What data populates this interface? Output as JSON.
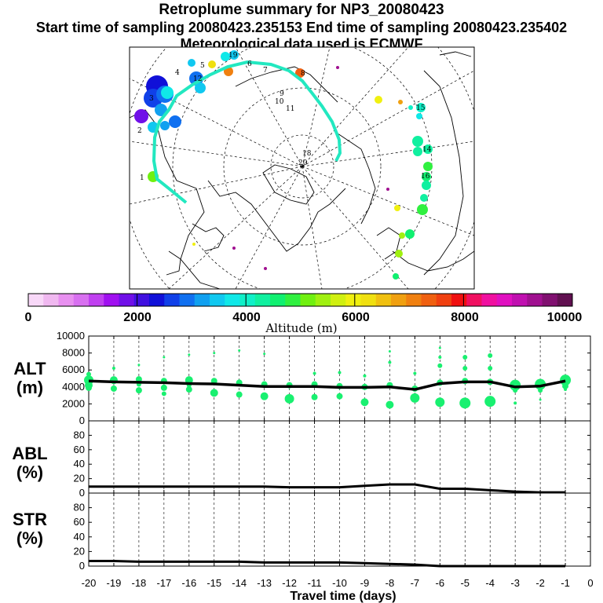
{
  "header": {
    "title": "Retroplume summary for NP3_20080423",
    "sampling_line": "Start time of sampling 20080423.235153     End time of sampling 20080423.235402",
    "met_line": "Meteorological data used is ECMWF"
  },
  "colors": {
    "trajectory": "#22e8c0",
    "point": "#19f070",
    "line": "#000000"
  },
  "colorbar": {
    "colors": [
      "#f8d8f8",
      "#f0b8f0",
      "#e890f0",
      "#d870f0",
      "#c040f0",
      "#a010f0",
      "#7010e8",
      "#4010e0",
      "#1010d8",
      "#1040e8",
      "#1070f0",
      "#10a0f0",
      "#10c8f0",
      "#10e8e8",
      "#10f0c8",
      "#10f0a0",
      "#10f070",
      "#30f040",
      "#70f010",
      "#a0f010",
      "#d0f010",
      "#f0f010",
      "#f0e010",
      "#f0c010",
      "#f0a010",
      "#f08010",
      "#f06010",
      "#f04010",
      "#f01010",
      "#f01060",
      "#f010a0",
      "#e010c0",
      "#c010b0",
      "#a01090",
      "#801070",
      "#601050"
    ],
    "ticks": [
      "0",
      "2000",
      "4000",
      "6000",
      "8000",
      "10000"
    ],
    "label": "Altitude (m)"
  },
  "map_labels": [
    {
      "text": "1",
      "color": "#000000"
    },
    {
      "text": "2",
      "color": "#000000"
    },
    {
      "text": "3",
      "color": "#000000"
    },
    {
      "text": "4",
      "color": "#000000"
    },
    {
      "text": "5",
      "color": "#000000"
    },
    {
      "text": "6",
      "color": "#000000"
    },
    {
      "text": "7",
      "color": "#000000"
    },
    {
      "text": "8",
      "color": "#000000"
    },
    {
      "text": "9",
      "color": "#000000"
    },
    {
      "text": "10",
      "color": "#000000"
    },
    {
      "text": "11",
      "color": "#000000"
    },
    {
      "text": "12",
      "color": "#000000"
    },
    {
      "text": "14",
      "color": "#000000"
    },
    {
      "text": "15",
      "color": "#000000"
    },
    {
      "text": "16",
      "color": "#000000"
    },
    {
      "text": "18",
      "color": "#000000"
    },
    {
      "text": "19",
      "color": "#000000"
    },
    {
      "text": "20",
      "color": "#000000"
    }
  ],
  "chart_data": [
    {
      "type": "scatter+line",
      "name": "ALT",
      "ylabel_line1": "ALT",
      "ylabel_line2": "(m)",
      "ylim": [
        0,
        10000
      ],
      "yticks": [
        "0",
        "2000",
        "4000",
        "6000",
        "8000",
        "10000"
      ],
      "xlim": [
        -20,
        0
      ],
      "line_x": [
        -20,
        -19,
        -18,
        -17,
        -16,
        -15,
        -14,
        -13,
        -12,
        -11,
        -10,
        -9,
        -8,
        -7,
        -6,
        -5,
        -4,
        -3,
        -2,
        -1
      ],
      "line_y": [
        4700,
        4600,
        4550,
        4500,
        4400,
        4350,
        4200,
        4050,
        4050,
        4050,
        3950,
        3950,
        4000,
        3700,
        4400,
        4600,
        4600,
        4000,
        4100,
        4700
      ],
      "points": [
        {
          "x": -20,
          "y": 4800,
          "s": 6
        },
        {
          "x": -20,
          "y": 4200,
          "s": 5
        },
        {
          "x": -20,
          "y": 3900,
          "s": 4
        },
        {
          "x": -20,
          "y": 5500,
          "s": 3
        },
        {
          "x": -19,
          "y": 4800,
          "s": 5
        },
        {
          "x": -19,
          "y": 3800,
          "s": 4
        },
        {
          "x": -19,
          "y": 6200,
          "s": 2
        },
        {
          "x": -18,
          "y": 4900,
          "s": 4
        },
        {
          "x": -18,
          "y": 3600,
          "s": 4
        },
        {
          "x": -18,
          "y": 4300,
          "s": 3
        },
        {
          "x": -18,
          "y": 6600,
          "s": 1.5
        },
        {
          "x": -17,
          "y": 4700,
          "s": 4
        },
        {
          "x": -17,
          "y": 3900,
          "s": 4
        },
        {
          "x": -17,
          "y": 3200,
          "s": 3
        },
        {
          "x": -17,
          "y": 7500,
          "s": 1.5
        },
        {
          "x": -16,
          "y": 4800,
          "s": 5
        },
        {
          "x": -16,
          "y": 3700,
          "s": 4
        },
        {
          "x": -16,
          "y": 4200,
          "s": 3
        },
        {
          "x": -16,
          "y": 7800,
          "s": 1.5
        },
        {
          "x": -15,
          "y": 4700,
          "s": 4
        },
        {
          "x": -15,
          "y": 3300,
          "s": 5
        },
        {
          "x": -15,
          "y": 8000,
          "s": 1.5
        },
        {
          "x": -14,
          "y": 4500,
          "s": 4
        },
        {
          "x": -14,
          "y": 3100,
          "s": 4
        },
        {
          "x": -14,
          "y": 8300,
          "s": 1.5
        },
        {
          "x": -13,
          "y": 4300,
          "s": 4
        },
        {
          "x": -13,
          "y": 2900,
          "s": 5
        },
        {
          "x": -13,
          "y": 7900,
          "s": 1.5
        },
        {
          "x": -12,
          "y": 4200,
          "s": 4
        },
        {
          "x": -12,
          "y": 2600,
          "s": 6
        },
        {
          "x": -11,
          "y": 4300,
          "s": 4
        },
        {
          "x": -11,
          "y": 2800,
          "s": 4
        },
        {
          "x": -11,
          "y": 5600,
          "s": 2
        },
        {
          "x": -10,
          "y": 4100,
          "s": 4
        },
        {
          "x": -10,
          "y": 2900,
          "s": 4
        },
        {
          "x": -10,
          "y": 5700,
          "s": 2
        },
        {
          "x": -9,
          "y": 4000,
          "s": 4
        },
        {
          "x": -9,
          "y": 2200,
          "s": 5
        },
        {
          "x": -9,
          "y": 5300,
          "s": 2
        },
        {
          "x": -8,
          "y": 4200,
          "s": 4
        },
        {
          "x": -8,
          "y": 1900,
          "s": 5
        },
        {
          "x": -8,
          "y": 6900,
          "s": 2
        },
        {
          "x": -8,
          "y": 8200,
          "s": 1.5
        },
        {
          "x": -7,
          "y": 3800,
          "s": 4
        },
        {
          "x": -7,
          "y": 2700,
          "s": 6
        },
        {
          "x": -7,
          "y": 5600,
          "s": 2
        },
        {
          "x": -6,
          "y": 4500,
          "s": 4
        },
        {
          "x": -6,
          "y": 2200,
          "s": 6
        },
        {
          "x": -6,
          "y": 6500,
          "s": 3
        },
        {
          "x": -6,
          "y": 7500,
          "s": 2
        },
        {
          "x": -6,
          "y": 8600,
          "s": 1.5
        },
        {
          "x": -5,
          "y": 4700,
          "s": 4
        },
        {
          "x": -5,
          "y": 2100,
          "s": 7
        },
        {
          "x": -5,
          "y": 6200,
          "s": 3
        },
        {
          "x": -5,
          "y": 7500,
          "s": 3
        },
        {
          "x": -4,
          "y": 4600,
          "s": 4
        },
        {
          "x": -4,
          "y": 2300,
          "s": 7
        },
        {
          "x": -4,
          "y": 6200,
          "s": 3
        },
        {
          "x": -4,
          "y": 7700,
          "s": 3
        },
        {
          "x": -3,
          "y": 4200,
          "s": 7
        },
        {
          "x": -3,
          "y": 3600,
          "s": 3
        },
        {
          "x": -3,
          "y": 2100,
          "s": 2
        },
        {
          "x": -2,
          "y": 4300,
          "s": 7
        },
        {
          "x": -2,
          "y": 3600,
          "s": 3
        },
        {
          "x": -2,
          "y": 2500,
          "s": 1.5
        },
        {
          "x": -1,
          "y": 4800,
          "s": 7
        },
        {
          "x": -1,
          "y": 4100,
          "s": 4
        },
        {
          "x": -1,
          "y": 3700,
          "s": 2
        }
      ]
    },
    {
      "type": "line",
      "name": "ABL",
      "ylabel_line1": "ABL",
      "ylabel_line2": "(%)",
      "ylim": [
        0,
        100
      ],
      "yticks": [
        "0",
        "20",
        "40",
        "60",
        "80"
      ],
      "xlim": [
        -20,
        0
      ],
      "x": [
        -20,
        -19,
        -18,
        -17,
        -16,
        -15,
        -14,
        -13,
        -12,
        -11,
        -10,
        -9,
        -8,
        -7,
        -6,
        -5,
        -4,
        -3,
        -2,
        -1
      ],
      "y": [
        9,
        9,
        9,
        9,
        9,
        9,
        9,
        9,
        8,
        8,
        8,
        10,
        12,
        12,
        6,
        6,
        4,
        2,
        1,
        1
      ]
    },
    {
      "type": "line",
      "name": "STR",
      "ylabel_line1": "STR",
      "ylabel_line2": "(%)",
      "ylim": [
        0,
        100
      ],
      "yticks": [
        "0",
        "20",
        "40",
        "60",
        "80"
      ],
      "xlim": [
        -20,
        0
      ],
      "x": [
        -20,
        -19,
        -18,
        -17,
        -16,
        -15,
        -14,
        -13,
        -12,
        -11,
        -10,
        -9,
        -8,
        -7,
        -6,
        -5,
        -4,
        -3,
        -2,
        -1
      ],
      "y": [
        7,
        7,
        6,
        6,
        6,
        6,
        6,
        5,
        5,
        5,
        5,
        4,
        3,
        2,
        0,
        0,
        0,
        0,
        0,
        0
      ],
      "xticks": [
        "-20",
        "-19",
        "-18",
        "-17",
        "-16",
        "-15",
        "-14",
        "-13",
        "-12",
        "-11",
        "-10",
        "-9",
        "-8",
        "-7",
        "-6",
        "-5",
        "-4",
        "-3",
        "-2",
        "-1",
        "0"
      ],
      "xlabel": "Travel time (days)"
    }
  ]
}
